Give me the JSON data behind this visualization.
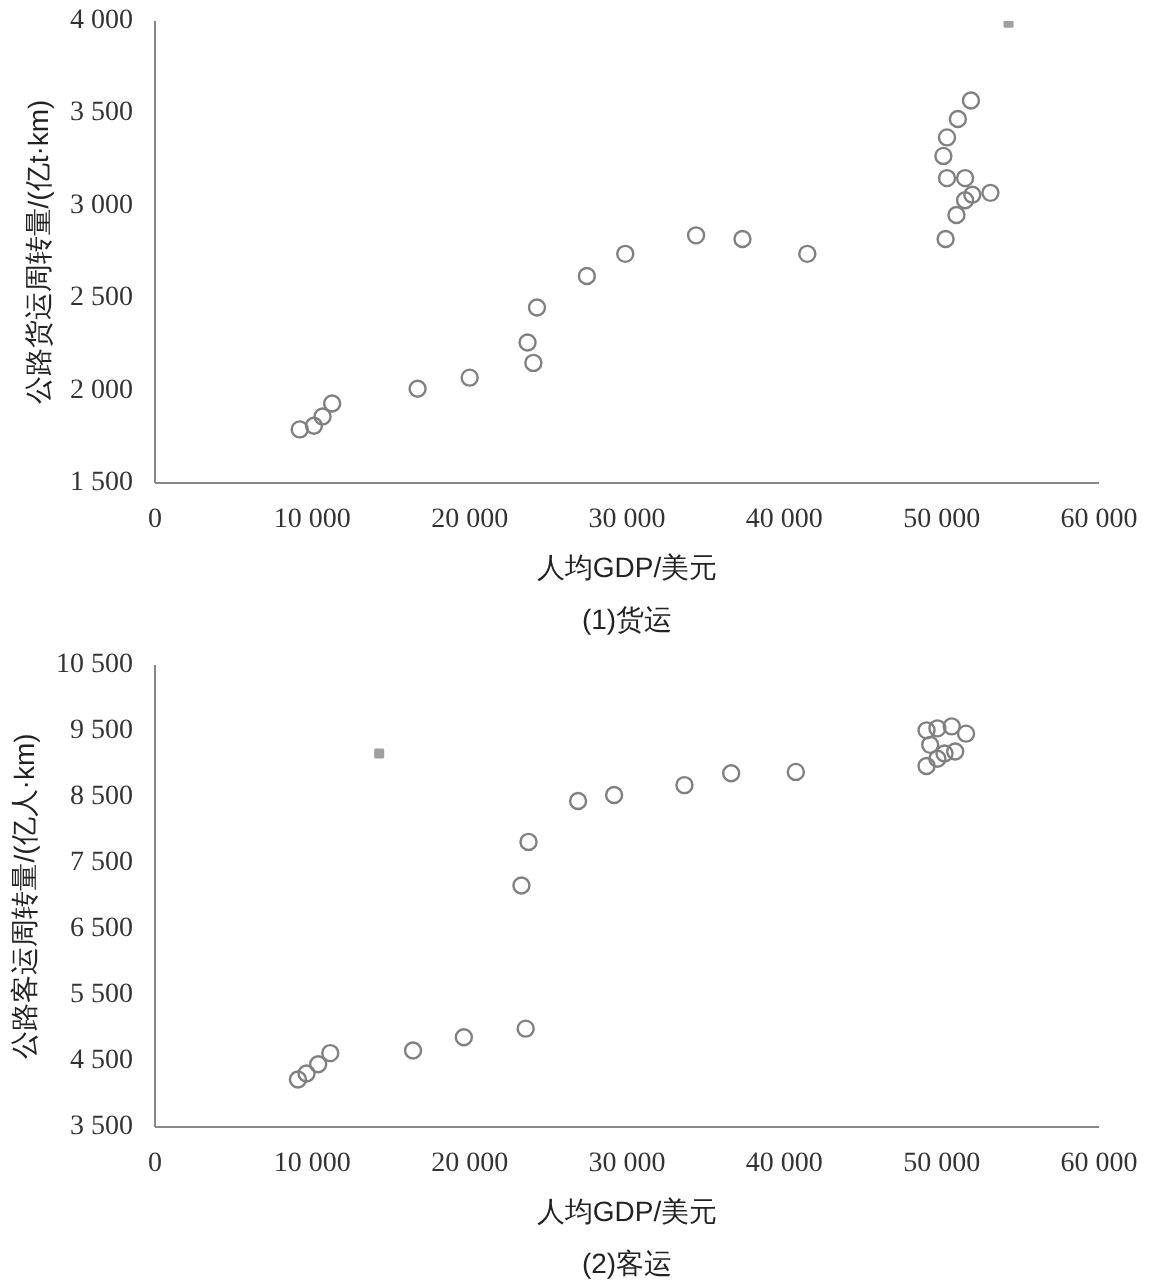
{
  "chart_data": [
    {
      "type": "scatter",
      "xlabel": "人均GDP/美元",
      "ylabel": "公路货运周转量/(亿t·km)",
      "annotations": [
        "(1)货运"
      ],
      "grid": false,
      "xlim": [
        0,
        60000
      ],
      "xticks": [
        0,
        {
          "value": 10000,
          "label": "10 000"
        },
        {
          "value": 20000,
          "label": "20 000"
        },
        {
          "value": 30000,
          "label": "30 000"
        },
        {
          "value": 40000,
          "label": "40 000"
        },
        {
          "value": 50000,
          "label": "50 000"
        },
        {
          "value": 60000,
          "label": "60 000"
        }
      ],
      "ylim": [
        1500,
        4000
      ],
      "yticks": [
        {
          "value": 1500,
          "label": "1 500"
        },
        {
          "value": 2000,
          "label": "2 000"
        },
        {
          "value": 2500,
          "label": "2 500"
        },
        {
          "value": 3000,
          "label": "3 000"
        },
        {
          "value": 3500,
          "label": "3 500"
        },
        {
          "value": 4000,
          "label": "4 000"
        }
      ],
      "series": [
        {
          "color": "#808080",
          "marker": "circle",
          "x": [
            9200,
            10100,
            10650,
            11260,
            16690,
            20000,
            23680,
            24050,
            24280,
            27450,
            29890,
            34390,
            37340,
            41460,
            50250,
            50940,
            51860,
            51030,
            50340,
            50110,
            50340,
            51490,
            51950,
            53100,
            51490
          ],
          "values": [
            1790,
            1810,
            1860,
            1930,
            2010,
            2070,
            2260,
            2150,
            2450,
            2620,
            2740,
            2840,
            2820,
            2740,
            2820,
            2950,
            3570,
            3470,
            3370,
            3270,
            3150,
            3150,
            3060,
            3070,
            3030
          ]
        },
        {
          "color": "#a0a0a0",
          "marker": "square",
          "x": [
            54250
          ],
          "values": [
            3990
          ]
        }
      ]
    },
    {
      "type": "scatter",
      "xlabel": "人均GDP/美元",
      "ylabel": "公路客运周转量/(亿人·km)",
      "annotations": [
        "(2)客运"
      ],
      "grid": false,
      "xlim": [
        0,
        60000
      ],
      "xticks": [
        0,
        {
          "value": 10000,
          "label": "10 000"
        },
        {
          "value": 20000,
          "label": "20 000"
        },
        {
          "value": 30000,
          "label": "30 000"
        },
        {
          "value": 40000,
          "label": "40 000"
        },
        {
          "value": 50000,
          "label": "50 000"
        },
        {
          "value": 60000,
          "label": "60 000"
        }
      ],
      "ylim": [
        3500,
        10500
      ],
      "yticks": [
        {
          "value": 3500,
          "label": "3 500"
        },
        {
          "value": 4500,
          "label": "4 500"
        },
        {
          "value": 5500,
          "label": "5 500"
        },
        {
          "value": 6500,
          "label": "6 500"
        },
        {
          "value": 7500,
          "label": "7 500"
        },
        {
          "value": 8500,
          "label": "8 500"
        },
        {
          "value": 9500,
          "label": "9 500"
        },
        {
          "value": 10500,
          "label": "10 500"
        }
      ],
      "series": [
        {
          "color": "#808080",
          "marker": "circle",
          "x": [
            9085,
            9630,
            10370,
            11140,
            16400,
            19630,
            23560,
            23290,
            23740,
            26890,
            29180,
            33650,
            36620,
            40730,
            49040,
            49730,
            50640,
            51550,
            49270,
            50180,
            50860,
            49040,
            49730
          ],
          "values": [
            4220,
            4310,
            4450,
            4620,
            4660,
            4860,
            4990,
            7160,
            7820,
            8440,
            8530,
            8680,
            8860,
            8880,
            9510,
            9540,
            9570,
            9460,
            9290,
            9160,
            9190,
            8970,
            9080
          ]
        },
        {
          "color": "#a0a0a0",
          "marker": "square",
          "x": [
            14250
          ],
          "values": [
            9160
          ]
        }
      ]
    }
  ]
}
